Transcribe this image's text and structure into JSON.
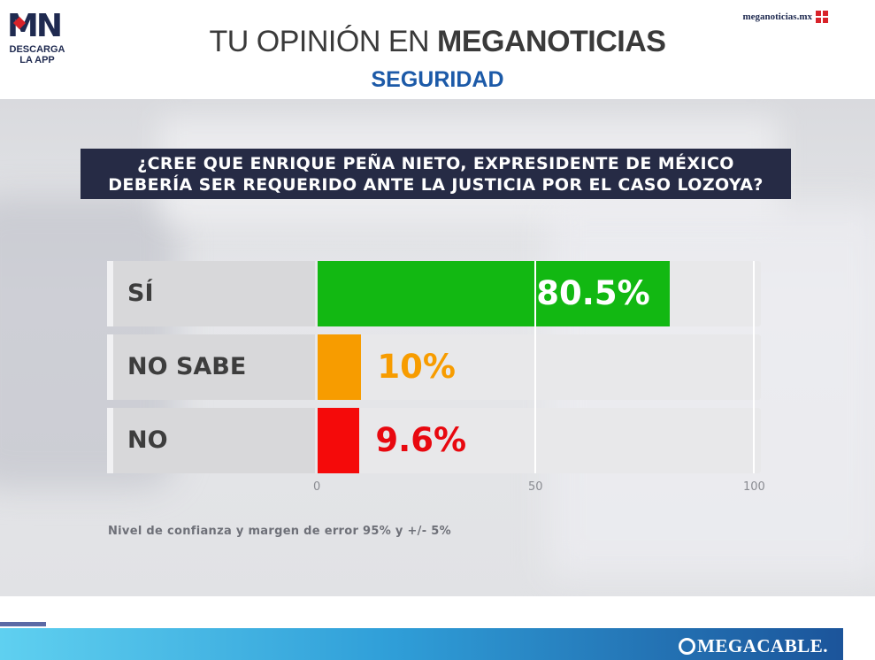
{
  "header": {
    "logo_text": "MN",
    "logo_sub_line1": "DESCARGA",
    "logo_sub_line2": "LA APP",
    "site": "meganoticias.mx",
    "title_light": "TU OPINIÓN EN",
    "title_bold": "MEGANOTICIAS",
    "section": "SEGURIDAD"
  },
  "chart_data": {
    "type": "bar",
    "orientation": "horizontal",
    "title_line1": "¿CREE QUE ENRIQUE PEÑA NIETO, EXPRESIDENTE DE MÉXICO",
    "title_line2": "DEBERÍA SER REQUERIDO ANTE LA JUSTICIA POR EL CASO LOZOYA?",
    "categories": [
      "SÍ",
      "NO SABE",
      "NO"
    ],
    "values": [
      80.5,
      10,
      9.6
    ],
    "value_labels": [
      "80.5%",
      "10%",
      "9.6%"
    ],
    "colors": [
      "#12b812",
      "#f79c00",
      "#f50a0a"
    ],
    "label_colors": [
      "#ffffff",
      "#f79c00",
      "#e8080f"
    ],
    "xlim": [
      0,
      100
    ],
    "xticks": [
      "0",
      "50",
      "100"
    ],
    "grid": true,
    "note": "Nivel de confianza y margen de error 95% y +/- 5%"
  },
  "footer": {
    "brand": "MEGACABLE."
  }
}
